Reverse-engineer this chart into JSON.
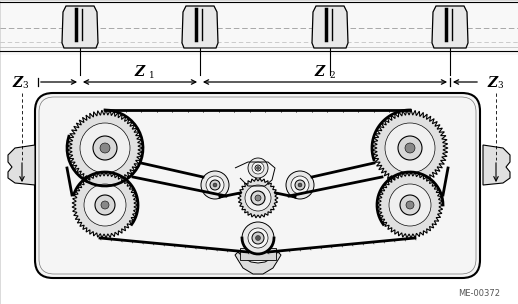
{
  "bg_color": "#ffffff",
  "lc": "#000000",
  "fig_width": 5.18,
  "fig_height": 3.04,
  "dpi": 100,
  "label_z1": "Z",
  "label_z1_sub": "1",
  "label_z2": "Z",
  "label_z2_sub": "2",
  "label_z3_left": "Z",
  "label_z3_sub": "3",
  "ref_code": "ME-00372"
}
